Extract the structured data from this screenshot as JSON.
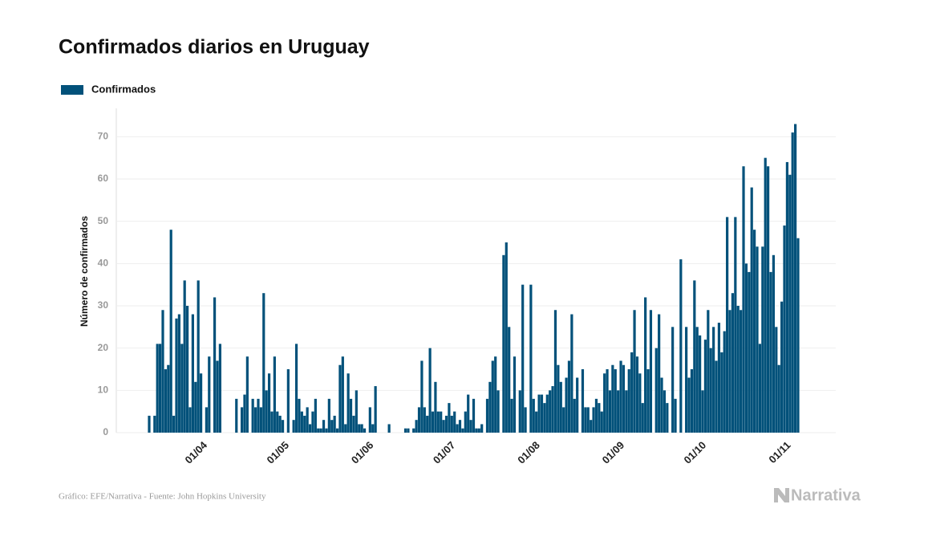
{
  "chart_data": {
    "type": "bar",
    "title": "Confirmados diarios en Uruguay",
    "y_label": "Número de confirmados",
    "source": "Gráfico: EFE/Narrativa - Fuente: John Hopkins University",
    "brand": "Narrativa",
    "grid": true,
    "ylim": [
      0,
      75
    ],
    "yticks": [
      0,
      10,
      20,
      30,
      40,
      50,
      60,
      70
    ],
    "categories": [
      null,
      null,
      null,
      null,
      null,
      null,
      null,
      null,
      null,
      null,
      null,
      null,
      null,
      null,
      null,
      null,
      null,
      null,
      null,
      "01/04",
      null,
      null,
      null,
      null,
      null,
      null,
      null,
      null,
      null,
      null,
      null,
      null,
      null,
      null,
      null,
      null,
      null,
      null,
      null,
      null,
      null,
      null,
      null,
      null,
      null,
      null,
      null,
      null,
      null,
      "01/05",
      null,
      null,
      null,
      null,
      null,
      null,
      null,
      null,
      null,
      null,
      null,
      null,
      null,
      null,
      null,
      null,
      null,
      null,
      null,
      null,
      null,
      null,
      null,
      null,
      null,
      null,
      null,
      null,
      null,
      null,
      "01/06",
      null,
      null,
      null,
      null,
      null,
      null,
      null,
      null,
      null,
      null,
      null,
      null,
      null,
      null,
      null,
      null,
      null,
      null,
      null,
      null,
      null,
      null,
      null,
      null,
      null,
      null,
      null,
      null,
      null,
      "01/07",
      null,
      null,
      null,
      null,
      null,
      null,
      null,
      null,
      null,
      null,
      null,
      null,
      null,
      null,
      null,
      null,
      null,
      null,
      null,
      null,
      null,
      null,
      null,
      null,
      null,
      null,
      null,
      null,
      null,
      null,
      "01/08",
      null,
      null,
      null,
      null,
      null,
      null,
      null,
      null,
      null,
      null,
      null,
      null,
      null,
      null,
      null,
      null,
      null,
      null,
      null,
      null,
      null,
      null,
      null,
      null,
      null,
      null,
      null,
      null,
      null,
      null,
      "01/09",
      null,
      null,
      null,
      null,
      null,
      null,
      null,
      null,
      null,
      null,
      null,
      null,
      null,
      null,
      null,
      null,
      null,
      null,
      null,
      null,
      null,
      null,
      null,
      null,
      null,
      null,
      null,
      null,
      null,
      "01/10",
      null,
      null,
      null,
      null,
      null,
      null,
      null,
      null,
      null,
      null,
      null,
      null,
      null,
      null,
      null,
      null,
      null,
      null,
      null,
      null,
      null,
      null,
      null,
      null,
      null,
      null,
      null,
      null,
      null,
      null,
      "01/11",
      null,
      null,
      null,
      null,
      null
    ],
    "series": [
      {
        "name": "Confirmados",
        "color": "#02517a",
        "values": [
          4,
          0,
          4,
          21,
          21,
          29,
          15,
          16,
          48,
          4,
          27,
          28,
          21,
          36,
          30,
          6,
          28,
          12,
          36,
          14,
          0,
          6,
          18,
          0,
          32,
          17,
          21,
          0,
          0,
          0,
          0,
          0,
          8,
          0,
          6,
          9,
          18,
          0,
          8,
          6,
          8,
          6,
          33,
          10,
          14,
          5,
          18,
          5,
          4,
          3,
          0,
          15,
          0,
          3,
          21,
          8,
          5,
          4,
          6,
          2,
          5,
          8,
          1,
          1,
          3,
          1,
          8,
          3,
          4,
          1,
          16,
          18,
          2,
          14,
          8,
          4,
          10,
          2,
          2,
          1,
          0,
          6,
          2,
          11,
          0,
          0,
          0,
          0,
          2,
          0,
          0,
          0,
          0,
          0,
          1,
          1,
          0,
          1,
          3,
          6,
          17,
          6,
          4,
          20,
          5,
          12,
          5,
          5,
          3,
          4,
          7,
          4,
          5,
          2,
          3,
          1,
          5,
          9,
          3,
          8,
          1,
          1,
          2,
          0,
          8,
          12,
          17,
          18,
          10,
          0,
          42,
          45,
          25,
          8,
          18,
          0,
          10,
          35,
          6,
          0,
          35,
          8,
          5,
          9,
          9,
          7,
          9,
          10,
          11,
          29,
          16,
          12,
          6,
          13,
          17,
          28,
          8,
          13,
          0,
          15,
          6,
          6,
          3,
          6,
          8,
          7,
          5,
          14,
          15,
          10,
          16,
          15,
          10,
          17,
          16,
          10,
          15,
          19,
          29,
          18,
          14,
          7,
          32,
          15,
          29,
          0,
          20,
          28,
          13,
          10,
          7,
          0,
          25,
          8,
          0,
          41,
          0,
          25,
          13,
          15,
          36,
          25,
          23,
          10,
          22,
          29,
          20,
          25,
          17,
          26,
          19,
          24,
          51,
          29,
          33,
          51,
          30,
          29,
          63,
          40,
          38,
          58,
          48,
          44,
          21,
          44,
          65,
          63,
          38,
          42,
          25,
          16,
          31,
          49,
          64,
          61,
          71,
          73,
          46
        ]
      }
    ]
  }
}
